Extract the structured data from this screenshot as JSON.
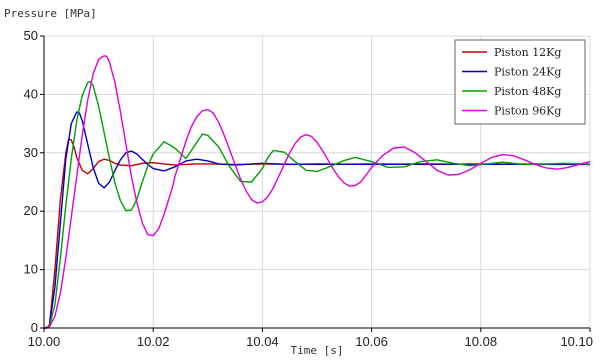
{
  "chart_data": {
    "type": "line",
    "ylabel": "Pressure [MPa]",
    "xlabel": "Time [s]",
    "xlim": [
      10.0,
      10.1
    ],
    "ylim": [
      0,
      50
    ],
    "xticks": [
      "10.00",
      "10.02",
      "10.04",
      "10.06",
      "10.08",
      "10.10"
    ],
    "xtick_values": [
      10.0,
      10.02,
      10.04,
      10.06,
      10.08,
      10.1
    ],
    "yticks": [
      "0",
      "10",
      "20",
      "30",
      "40",
      "50"
    ],
    "ytick_values": [
      0,
      10,
      20,
      30,
      40,
      50
    ],
    "grid": true,
    "legend_position": "top-right",
    "series": [
      {
        "name": "Piston 12Kg",
        "color": "#c00000",
        "x": [
          10.0,
          10.0005,
          10.001,
          10.002,
          10.003,
          10.004,
          10.0045,
          10.005,
          10.0055,
          10.006,
          10.007,
          10.008,
          10.009,
          10.01,
          10.011,
          10.012,
          10.013,
          10.014,
          10.016,
          10.018,
          10.02,
          10.022,
          10.024,
          10.026,
          10.028,
          10.03,
          10.035,
          10.04,
          10.05,
          10.06,
          10.07,
          10.08,
          10.09,
          10.1
        ],
        "y": [
          0,
          0,
          0.5,
          10,
          22,
          30,
          32.3,
          32.2,
          31.0,
          29.2,
          27.0,
          26.4,
          27.3,
          28.5,
          28.9,
          28.7,
          28.2,
          27.9,
          27.8,
          28.2,
          28.3,
          28.1,
          27.9,
          28.0,
          28.1,
          28.1,
          28.0,
          28.1,
          28.0,
          28.1,
          28.0,
          28.1,
          28.0,
          28.0
        ]
      },
      {
        "name": "Piston 24Kg",
        "color": "#0000c0",
        "x": [
          10.0,
          10.0005,
          10.001,
          10.002,
          10.003,
          10.004,
          10.005,
          10.006,
          10.0065,
          10.007,
          10.008,
          10.009,
          10.01,
          10.011,
          10.012,
          10.013,
          10.014,
          10.015,
          10.016,
          10.017,
          10.018,
          10.019,
          10.02,
          10.022,
          10.024,
          10.026,
          10.028,
          10.03,
          10.032,
          10.035,
          10.04,
          10.045,
          10.05,
          10.06,
          10.07,
          10.08,
          10.09,
          10.1
        ],
        "y": [
          0,
          0,
          0.5,
          7,
          18,
          29,
          35,
          37,
          36.8,
          35.5,
          31.5,
          27.5,
          24.8,
          24.0,
          25.0,
          27.0,
          28.8,
          30.0,
          30.3,
          29.8,
          28.9,
          28.0,
          27.3,
          26.9,
          27.6,
          28.6,
          28.9,
          28.6,
          28.1,
          27.9,
          28.2,
          28.0,
          28.1,
          28.0,
          28.1,
          28.0,
          28.1,
          28.0
        ]
      },
      {
        "name": "Piston 48Kg",
        "color": "#00a000",
        "x": [
          10.0,
          10.001,
          10.002,
          10.003,
          10.004,
          10.005,
          10.006,
          10.007,
          10.008,
          10.0085,
          10.009,
          10.01,
          10.011,
          10.012,
          10.013,
          10.014,
          10.015,
          10.016,
          10.017,
          10.018,
          10.019,
          10.02,
          10.022,
          10.024,
          10.026,
          10.028,
          10.029,
          10.03,
          10.032,
          10.034,
          10.036,
          10.038,
          10.04,
          10.041,
          10.042,
          10.044,
          10.046,
          10.048,
          10.05,
          10.052,
          10.055,
          10.057,
          10.06,
          10.063,
          10.066,
          10.069,
          10.072,
          10.075,
          10.078,
          10.081,
          10.084,
          10.087,
          10.09,
          10.095,
          10.1
        ],
        "y": [
          0,
          0.3,
          4,
          12,
          21,
          29,
          35.5,
          39.8,
          42.0,
          42.2,
          41.5,
          38.0,
          33.5,
          29.0,
          24.8,
          21.8,
          20.1,
          20.2,
          22.0,
          25.0,
          27.7,
          29.8,
          31.9,
          30.8,
          29.0,
          31.8,
          33.2,
          33.0,
          31.0,
          27.6,
          25.1,
          25.0,
          27.3,
          29.2,
          30.4,
          30.1,
          28.5,
          27.0,
          26.8,
          27.5,
          28.7,
          29.2,
          28.5,
          27.5,
          27.6,
          28.5,
          28.8,
          28.2,
          27.8,
          28.1,
          28.4,
          28.1,
          28.0,
          28.2,
          28.1
        ]
      },
      {
        "name": "Piston 96Kg",
        "color": "#e000e0",
        "x": [
          10.0,
          10.001,
          10.002,
          10.003,
          10.004,
          10.005,
          10.006,
          10.007,
          10.008,
          10.009,
          10.01,
          10.011,
          10.0115,
          10.012,
          10.013,
          10.014,
          10.015,
          10.016,
          10.017,
          10.018,
          10.019,
          10.02,
          10.021,
          10.022,
          10.023,
          10.0235,
          10.024,
          10.025,
          10.026,
          10.027,
          10.028,
          10.029,
          10.03,
          10.031,
          10.032,
          10.033,
          10.034,
          10.035,
          10.036,
          10.037,
          10.038,
          10.039,
          10.04,
          10.041,
          10.042,
          10.043,
          10.044,
          10.045,
          10.046,
          10.047,
          10.048,
          10.049,
          10.05,
          10.051,
          10.052,
          10.053,
          10.054,
          10.055,
          10.056,
          10.057,
          10.058,
          10.059,
          10.06,
          10.062,
          10.064,
          10.066,
          10.068,
          10.07,
          10.072,
          10.074,
          10.076,
          10.078,
          10.08,
          10.082,
          10.084,
          10.086,
          10.088,
          10.09,
          10.092,
          10.094,
          10.096,
          10.098,
          10.1
        ],
        "y": [
          0,
          0.2,
          2,
          6,
          12,
          19,
          26,
          33,
          39,
          43.5,
          46.0,
          46.6,
          46.5,
          45.5,
          42.0,
          37.0,
          31.5,
          26.0,
          21.5,
          18.0,
          16.0,
          15.8,
          17.0,
          19.5,
          22.5,
          24.0,
          26.0,
          29.0,
          32.0,
          34.5,
          36.2,
          37.2,
          37.4,
          36.8,
          35.2,
          33.0,
          30.5,
          28.0,
          25.5,
          23.5,
          22.0,
          21.4,
          21.6,
          22.5,
          24.0,
          26.0,
          28.0,
          30.0,
          31.6,
          32.7,
          33.1,
          32.8,
          31.8,
          30.4,
          28.8,
          27.2,
          25.8,
          24.8,
          24.3,
          24.4,
          25.0,
          26.2,
          27.5,
          29.5,
          30.8,
          31.0,
          30.0,
          28.5,
          27.0,
          26.2,
          26.3,
          27.1,
          28.2,
          29.2,
          29.7,
          29.5,
          28.8,
          28.0,
          27.4,
          27.2,
          27.5,
          28.0,
          28.5
        ]
      }
    ]
  }
}
